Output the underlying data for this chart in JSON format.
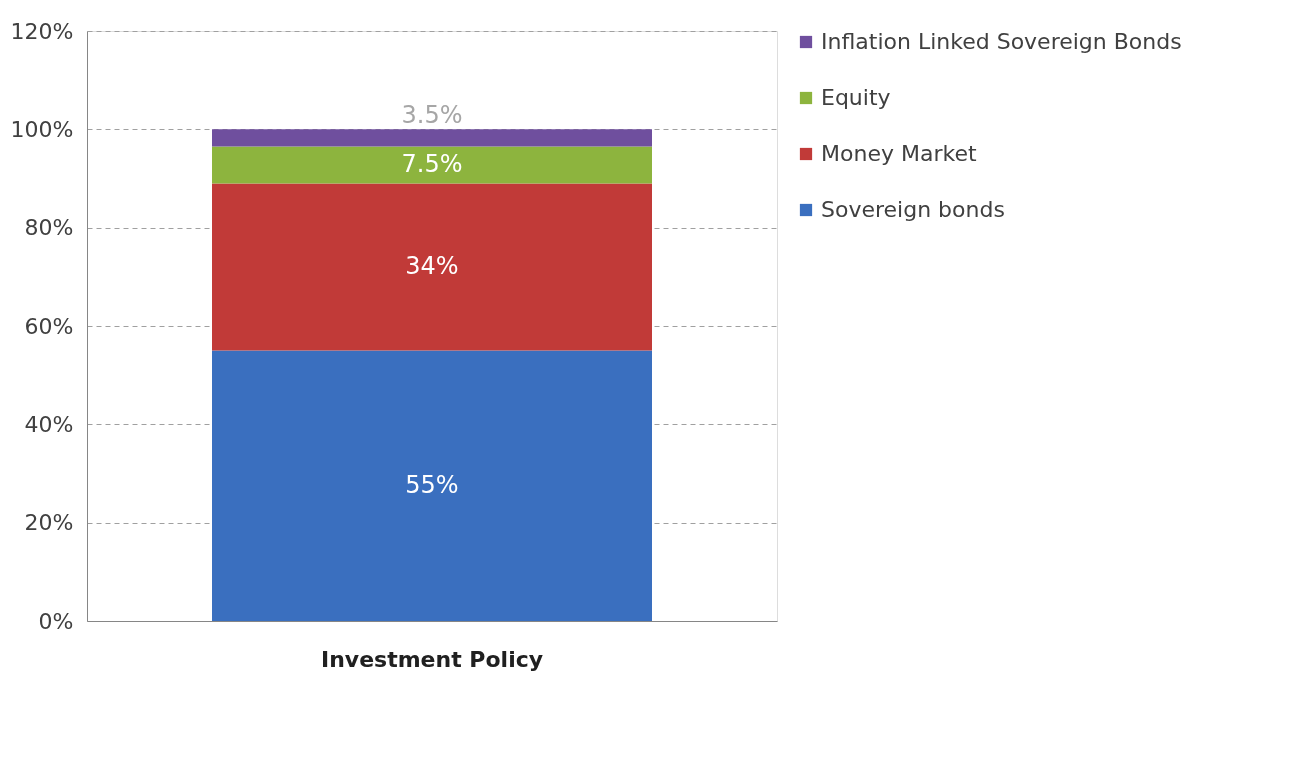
{
  "chart_data": {
    "type": "bar",
    "stacked": true,
    "categories": [
      "Investment Policy"
    ],
    "series": [
      {
        "name": "Sovereign bonds",
        "color": "#3a6fbf",
        "values": [
          55
        ],
        "value_labels": [
          "55%"
        ]
      },
      {
        "name": "Money Market",
        "color": "#c13a38",
        "values": [
          34
        ],
        "value_labels": [
          "34%"
        ]
      },
      {
        "name": "Equity",
        "color": "#8db43e",
        "values": [
          7.5
        ],
        "value_labels": [
          "7.5%"
        ]
      },
      {
        "name": "Inflation Linked Sovereign Bonds",
        "color": "#6f4f9e",
        "values": [
          3.5
        ],
        "value_labels": [
          "3.5%"
        ]
      }
    ],
    "ylim": [
      0,
      120
    ],
    "yticks": [
      {
        "value": 0,
        "label": "0%"
      },
      {
        "value": 20,
        "label": "20%"
      },
      {
        "value": 40,
        "label": "40%"
      },
      {
        "value": 60,
        "label": "60%"
      },
      {
        "value": 80,
        "label": "80%"
      },
      {
        "value": 100,
        "label": "100%"
      },
      {
        "value": 120,
        "label": "120%"
      }
    ],
    "grid": "y",
    "legend": "right"
  }
}
